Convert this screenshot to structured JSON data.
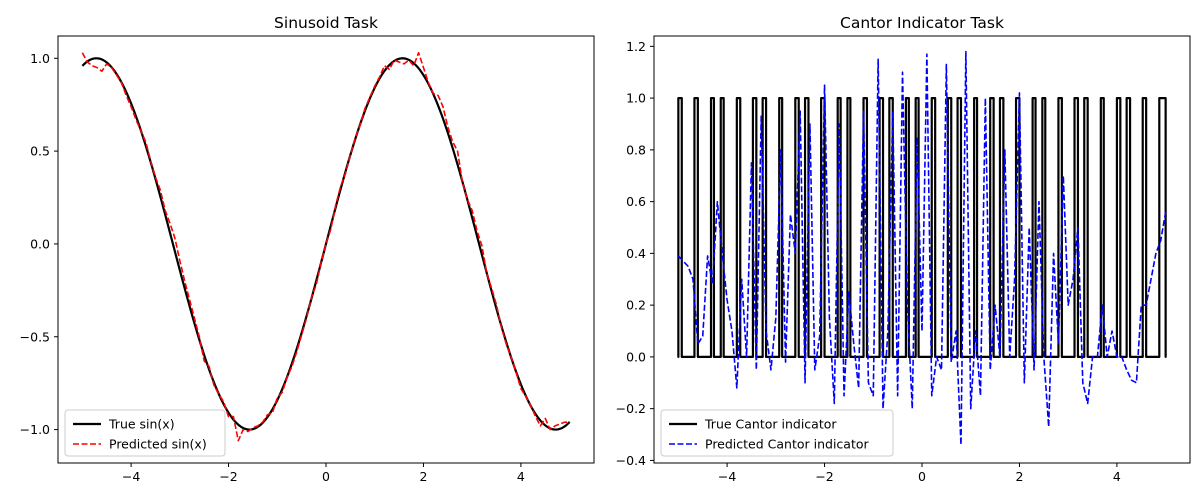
{
  "chart_data": [
    {
      "type": "line",
      "title": "Sinusoid Task",
      "xlabel": "",
      "ylabel": "",
      "xlim": [
        -5.5,
        5.5
      ],
      "ylim": [
        -1.18,
        1.12
      ],
      "grid": false,
      "legend_position": "lower-left",
      "x_ticks": [
        -4,
        -2,
        0,
        2,
        4
      ],
      "x_tick_labels": [
        "−4",
        "−2",
        "0",
        "2",
        "4"
      ],
      "y_ticks": [
        -1.0,
        -0.5,
        0.0,
        0.5,
        1.0
      ],
      "y_tick_labels": [
        "−1.0",
        "−0.5",
        "0.0",
        "0.5",
        "1.0"
      ],
      "series": [
        {
          "name": "True sin(x)",
          "color": "#000000",
          "style": "solid",
          "function": "sin",
          "x_range": [
            -5,
            5
          ]
        },
        {
          "name": "Predicted sin(x)",
          "color": "#ff0000",
          "style": "dashed",
          "x": [
            -5.0,
            -4.9,
            -4.8,
            -4.7,
            -4.6,
            -4.5,
            -4.4,
            -4.3,
            -4.2,
            -4.1,
            -4.0,
            -3.9,
            -3.8,
            -3.7,
            -3.6,
            -3.5,
            -3.4,
            -3.3,
            -3.2,
            -3.1,
            -3.0,
            -2.9,
            -2.8,
            -2.7,
            -2.6,
            -2.5,
            -2.4,
            -2.3,
            -2.2,
            -2.1,
            -2.0,
            -1.9,
            -1.8,
            -1.7,
            -1.6,
            -1.5,
            -1.4,
            -1.3,
            -1.2,
            -1.1,
            -1.0,
            -0.9,
            -0.8,
            -0.7,
            -0.6,
            -0.5,
            -0.4,
            -0.3,
            -0.2,
            -0.1,
            0.0,
            0.1,
            0.2,
            0.3,
            0.4,
            0.5,
            0.6,
            0.7,
            0.8,
            0.9,
            1.0,
            1.1,
            1.2,
            1.3,
            1.4,
            1.5,
            1.6,
            1.7,
            1.8,
            1.9,
            2.0,
            2.1,
            2.2,
            2.3,
            2.4,
            2.5,
            2.6,
            2.7,
            2.8,
            2.9,
            3.0,
            3.1,
            3.2,
            3.3,
            3.4,
            3.5,
            3.6,
            3.7,
            3.8,
            3.9,
            4.0,
            4.1,
            4.2,
            4.3,
            4.4,
            4.5,
            4.6,
            4.7,
            4.8,
            4.9,
            5.0
          ],
          "values": [
            1.03,
            0.98,
            0.96,
            0.95,
            0.93,
            0.97,
            0.95,
            0.91,
            0.87,
            0.8,
            0.74,
            0.67,
            0.61,
            0.55,
            0.45,
            0.36,
            0.29,
            0.18,
            0.11,
            0.03,
            -0.09,
            -0.2,
            -0.3,
            -0.4,
            -0.5,
            -0.63,
            -0.66,
            -0.76,
            -0.81,
            -0.85,
            -0.93,
            -0.93,
            -1.06,
            -1.0,
            -1.01,
            -0.99,
            -0.98,
            -0.96,
            -0.92,
            -0.91,
            -0.83,
            -0.8,
            -0.72,
            -0.66,
            -0.58,
            -0.49,
            -0.4,
            -0.29,
            -0.22,
            -0.1,
            0.0,
            0.08,
            0.21,
            0.31,
            0.38,
            0.48,
            0.57,
            0.64,
            0.73,
            0.79,
            0.85,
            0.9,
            0.96,
            0.94,
            0.99,
            0.98,
            0.97,
            0.99,
            0.96,
            1.03,
            0.95,
            0.87,
            0.81,
            0.8,
            0.74,
            0.63,
            0.55,
            0.5,
            0.33,
            0.24,
            0.18,
            0.07,
            -0.01,
            -0.16,
            -0.24,
            -0.33,
            -0.45,
            -0.54,
            -0.61,
            -0.69,
            -0.78,
            -0.82,
            -0.87,
            -0.93,
            -0.98,
            -0.94,
            -1.0,
            -0.98,
            -0.97,
            -0.96,
            -0.96
          ]
        }
      ]
    },
    {
      "type": "line",
      "title": "Cantor Indicator Task",
      "xlabel": "",
      "ylabel": "",
      "xlim": [
        -5.5,
        5.5
      ],
      "ylim": [
        -0.41,
        1.24
      ],
      "grid": false,
      "legend_position": "lower-left",
      "x_ticks": [
        -4,
        -2,
        0,
        2,
        4
      ],
      "x_tick_labels": [
        "−4",
        "−2",
        "0",
        "2",
        "4"
      ],
      "y_ticks": [
        -0.4,
        -0.2,
        0.0,
        0.2,
        0.4,
        0.6,
        0.8,
        1.0,
        1.2
      ],
      "y_tick_labels": [
        "−0.4",
        "−0.2",
        "0.0",
        "0.2",
        "0.4",
        "0.6",
        "0.8",
        "1.0",
        "1.2"
      ],
      "series": [
        {
          "name": "True Cantor indicator",
          "color": "#000000",
          "style": "solid",
          "intervals_value_1": [
            [
              -5.0,
              -4.93
            ],
            [
              -4.67,
              -4.6
            ],
            [
              -4.33,
              -4.27
            ],
            [
              -4.13,
              -4.07
            ],
            [
              -3.8,
              -3.73
            ],
            [
              -3.47,
              -3.4
            ],
            [
              -3.27,
              -3.2
            ],
            [
              -2.93,
              -2.87
            ],
            [
              -2.6,
              -2.53
            ],
            [
              -2.4,
              -2.33
            ],
            [
              -2.07,
              -2.0
            ],
            [
              -1.73,
              -1.67
            ],
            [
              -1.53,
              -1.47
            ],
            [
              -1.2,
              -1.13
            ],
            [
              -0.87,
              -0.8
            ],
            [
              -0.67,
              -0.6
            ],
            [
              -0.33,
              -0.27
            ],
            [
              -0.13,
              -0.07
            ],
            [
              0.2,
              0.27
            ],
            [
              0.53,
              0.6
            ],
            [
              0.73,
              0.8
            ],
            [
              1.07,
              1.13
            ],
            [
              1.4,
              1.47
            ],
            [
              1.6,
              1.67
            ],
            [
              1.93,
              2.0
            ],
            [
              2.27,
              2.33
            ],
            [
              2.47,
              2.53
            ],
            [
              2.8,
              2.87
            ],
            [
              3.13,
              3.2
            ],
            [
              3.33,
              3.4
            ],
            [
              3.67,
              3.73
            ],
            [
              4.0,
              4.07
            ],
            [
              4.2,
              4.27
            ],
            [
              4.53,
              4.6
            ],
            [
              4.87,
              5.0
            ]
          ]
        },
        {
          "name": "Predicted Cantor indicator",
          "color": "#0000ff",
          "style": "dashed",
          "x": [
            -5.0,
            -4.8,
            -4.7,
            -4.6,
            -4.5,
            -4.4,
            -4.3,
            -4.2,
            -4.1,
            -4.0,
            -3.9,
            -3.8,
            -3.7,
            -3.6,
            -3.5,
            -3.4,
            -3.3,
            -3.2,
            -3.1,
            -3.0,
            -2.9,
            -2.8,
            -2.7,
            -2.6,
            -2.5,
            -2.4,
            -2.3,
            -2.2,
            -2.1,
            -2.0,
            -1.9,
            -1.8,
            -1.7,
            -1.6,
            -1.5,
            -1.4,
            -1.3,
            -1.2,
            -1.1,
            -1.0,
            -0.9,
            -0.8,
            -0.7,
            -0.6,
            -0.5,
            -0.4,
            -0.3,
            -0.2,
            -0.1,
            0.0,
            0.1,
            0.2,
            0.3,
            0.4,
            0.5,
            0.6,
            0.7,
            0.8,
            0.9,
            1.0,
            1.1,
            1.2,
            1.3,
            1.4,
            1.5,
            1.6,
            1.7,
            1.8,
            1.9,
            2.0,
            2.1,
            2.2,
            2.3,
            2.4,
            2.5,
            2.6,
            2.7,
            2.8,
            2.9,
            3.0,
            3.1,
            3.2,
            3.3,
            3.4,
            3.5,
            3.6,
            3.7,
            3.8,
            3.9,
            4.0,
            4.1,
            4.2,
            4.3,
            4.4,
            4.5,
            4.6,
            4.7,
            4.8,
            4.9,
            5.0
          ],
          "values": [
            0.39,
            0.35,
            0.3,
            0.05,
            0.08,
            0.39,
            0.28,
            0.6,
            0.4,
            0.22,
            0.1,
            -0.12,
            0.3,
            0.0,
            0.75,
            -0.05,
            0.93,
            0.1,
            -0.05,
            0.15,
            0.8,
            -0.02,
            0.55,
            0.4,
            0.95,
            -0.1,
            0.9,
            -0.05,
            0.08,
            1.05,
            0.15,
            -0.18,
            0.9,
            -0.15,
            0.25,
            0.05,
            -0.12,
            0.95,
            -0.1,
            -0.15,
            1.15,
            -0.2,
            0.1,
            0.95,
            -0.15,
            1.1,
            0.2,
            -0.2,
            0.85,
            0.1,
            1.17,
            -0.15,
            0.0,
            -0.05,
            1.13,
            -0.02,
            0.1,
            -0.34,
            1.18,
            -0.2,
            0.1,
            -0.15,
            1.0,
            -0.05,
            0.2,
            0.0,
            0.8,
            0.0,
            0.3,
            1.02,
            -0.1,
            0.5,
            -0.05,
            0.6,
            0.0,
            -0.27,
            0.4,
            0.05,
            0.7,
            0.2,
            0.3,
            0.5,
            -0.1,
            -0.18,
            0.0,
            0.0,
            0.2,
            0.0,
            0.1,
            0.0,
            0.0,
            -0.05,
            -0.09,
            -0.1,
            0.2,
            0.2,
            0.3,
            0.4,
            0.45,
            0.56
          ]
        }
      ]
    }
  ]
}
